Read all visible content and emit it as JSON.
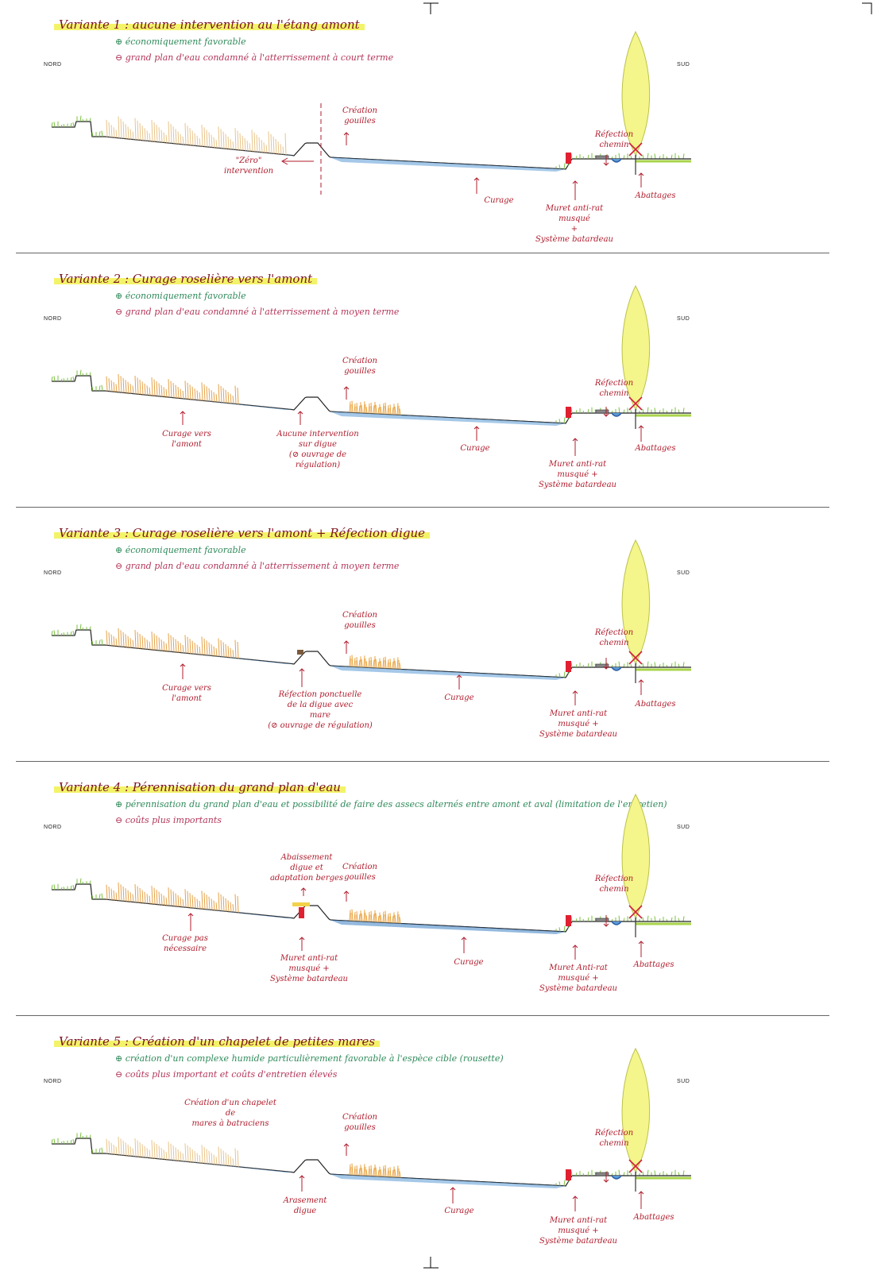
{
  "panels": [
    {
      "title": "Variante 1 : aucune intervention au l'étang amont",
      "pro": "⊕ économiquement favorable",
      "con": "⊖ grand plan d'eau condamné à l'atterrissement à court terme",
      "nord": "NORD",
      "sud": "SUD",
      "annotations": [
        {
          "text": "Création\ngouilles"
        },
        {
          "text": "\"Zéro\" intervention"
        },
        {
          "text": "Réfection\nchemin"
        },
        {
          "text": "Curage"
        },
        {
          "text": "Muret anti-rat\nmusqué\n+\nSystème batardeau"
        },
        {
          "text": "Abattages"
        }
      ]
    },
    {
      "title": "Variante 2 : Curage roselière vers l'amont",
      "pro": "⊕ économiquement favorable",
      "con": "⊖ grand plan d'eau condamné à l'atterrissement à moyen terme",
      "nord": "NORD",
      "sud": "SUD",
      "annotations": [
        {
          "text": "Création\ngouilles"
        },
        {
          "text": "Réfection\nchemin"
        },
        {
          "text": "Curage vers\nl'amont"
        },
        {
          "text": "Aucune intervention\nsur digue\n(⊘ ouvrage de régulation)"
        },
        {
          "text": "Curage"
        },
        {
          "text": "Muret anti-rat\nmusqué +\nSystème batardeau"
        },
        {
          "text": "Abattages"
        }
      ]
    },
    {
      "title": "Variante 3 : Curage roselière vers l'amont + Réfection digue",
      "pro": "⊕ économiquement favorable",
      "con": "⊖ grand plan d'eau condamné à l'atterrissement à moyen terme",
      "nord": "NORD",
      "sud": "SUD",
      "annotations": [
        {
          "text": "Création\ngouilles"
        },
        {
          "text": "Réfection\nchemin"
        },
        {
          "text": "Curage vers\nl'amont"
        },
        {
          "text": "Réfection ponctuelle\nde la digue avec\nmare\n(⊘ ouvrage de régulation)"
        },
        {
          "text": "Curage"
        },
        {
          "text": "Muret anti-rat\nmusqué +\nSystème batardeau"
        },
        {
          "text": "Abattages"
        }
      ]
    },
    {
      "title": "Variante 4 : Pérennisation du grand plan d'eau",
      "pro": "⊕ pérennisation du grand plan d'eau et possibilité de faire des assecs alternés entre amont et aval (limitation de l'entretien)",
      "con": "⊖ coûts plus importants",
      "nord": "NORD",
      "sud": "SUD",
      "annotations": [
        {
          "text": "Abaissement\ndigue et\nadaptation berges"
        },
        {
          "text": "Création\ngouilles"
        },
        {
          "text": "Réfection\nchemin"
        },
        {
          "text": "Curage pas\nnécessaire"
        },
        {
          "text": "Muret anti-rat\nmusqué +\nSystème batardeau"
        },
        {
          "text": "Curage"
        },
        {
          "text": "Muret Anti-rat\nmusqué +\nSystème batardeau"
        },
        {
          "text": "Abattages"
        }
      ]
    },
    {
      "title": "Variante 5 : Création d'un chapelet de petites mares",
      "pro": "⊕ création d'un complexe humide particulièrement favorable à l'espèce cible (rousette)",
      "con": "⊖ coûts plus important et coûts d'entretien élevés",
      "nord": "NORD",
      "sud": "SUD",
      "annotations": [
        {
          "text": "Création d'un chapelet de\nmares à batraciens"
        },
        {
          "text": "Création\ngouilles"
        },
        {
          "text": "Réfection\nchemin"
        },
        {
          "text": "Arasement\ndigue"
        },
        {
          "text": "Curage"
        },
        {
          "text": "Muret anti-rat\nmusqué +\nSystème batardeau"
        },
        {
          "text": "Abattages"
        }
      ]
    }
  ]
}
